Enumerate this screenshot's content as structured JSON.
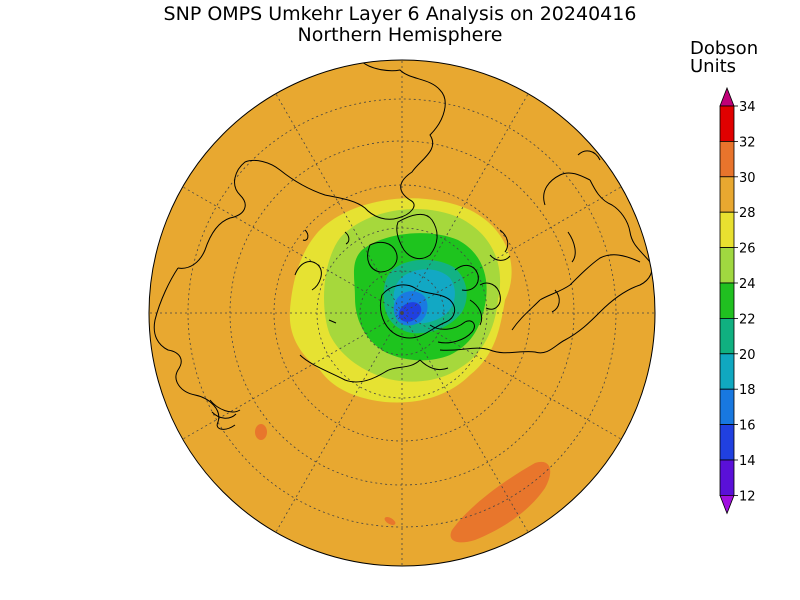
{
  "title": "SNP OMPS Umkehr Layer 6 Analysis on 20240416",
  "subtitle": "Northern Hemisphere",
  "colorbar": {
    "unit_line1": "Dobson",
    "unit_line2": "Units",
    "ticks": [
      "34",
      "32",
      "30",
      "28",
      "26",
      "24",
      "22",
      "20",
      "18",
      "16",
      "14",
      "12"
    ],
    "colors": [
      "#c00078",
      "#e00000",
      "#e8742c",
      "#e8a830",
      "#e8e030",
      "#a0d840",
      "#20c020",
      "#10b080",
      "#10a8c0",
      "#1878e0",
      "#2040e0",
      "#5a10d8",
      "#a010e0"
    ]
  },
  "map": {
    "projection": "north polar stereographic",
    "background_color": "#e8a830"
  }
}
